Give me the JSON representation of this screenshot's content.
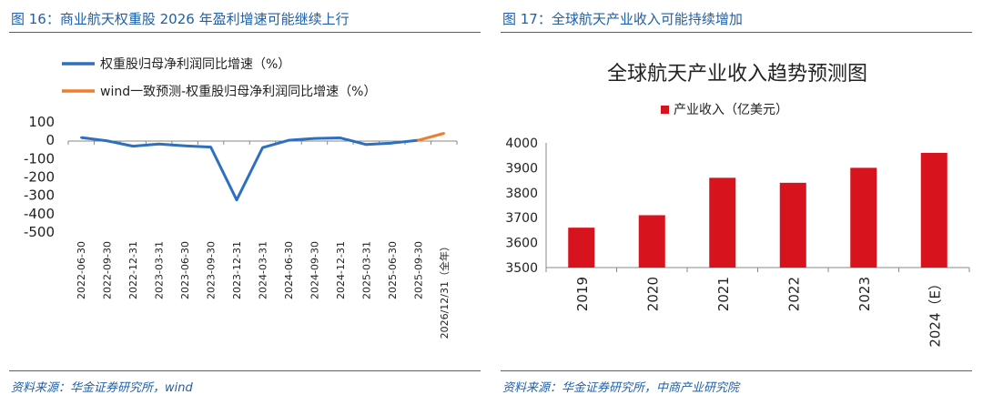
{
  "left": {
    "fig_label": "图 16：",
    "fig_title": "商业航天权重股 2026 年盈利增速可能继续上行",
    "source": "资料来源：华金证券研究所，wind"
  },
  "right": {
    "fig_label": "图 17：",
    "fig_title": "全球航天产业收入可能持续增加",
    "source": "资料来源：华金证券研究所，中商产业研究院"
  },
  "colors": {
    "accent": "#1f5fa8",
    "line_actual": "#2e6fbf",
    "line_forecast": "#ed7d31",
    "bar": "#d7131d"
  },
  "chart_data": [
    {
      "type": "line",
      "title": "",
      "categories": [
        "2022-06-30",
        "2022-09-30",
        "2022-12-31",
        "2023-03-31",
        "2023-06-30",
        "2023-09-30",
        "2023-12-31",
        "2024-03-31",
        "2024-06-30",
        "2024-09-30",
        "2024-12-31",
        "2025-03-31",
        "2025-06-30",
        "2025-09-30",
        "2026/12/31（全年）"
      ],
      "series": [
        {
          "name": "权重股归母净利润同比增速（%）",
          "color": "#2e6fbf",
          "values": [
            15,
            -3,
            -32,
            -20,
            -30,
            -37,
            -325,
            -40,
            0,
            10,
            13,
            -23,
            -15,
            0,
            null
          ]
        },
        {
          "name": "wind一致预测-权重股归母净利润同比增速（%）",
          "color": "#ed7d31",
          "values": [
            null,
            null,
            null,
            null,
            null,
            null,
            null,
            null,
            null,
            null,
            null,
            null,
            null,
            0,
            38
          ]
        }
      ],
      "yticks": [
        "100",
        "0",
        "-100",
        "-200",
        "-300",
        "-400",
        "-500"
      ],
      "ylim": [
        -500,
        100
      ],
      "xlabel": "",
      "ylabel": "",
      "legend": "top-left"
    },
    {
      "type": "bar",
      "title": "全球航天产业收入趋势预测图",
      "categories": [
        "2019",
        "2020",
        "2021",
        "2022",
        "2023",
        "2024（E）"
      ],
      "series": [
        {
          "name": "产业收入（亿美元）",
          "color": "#d7131d",
          "values": [
            3660,
            3710,
            3860,
            3840,
            3900,
            3960
          ]
        }
      ],
      "yticks": [
        "4000",
        "3900",
        "3800",
        "3700",
        "3600",
        "3500"
      ],
      "ylim": [
        3500,
        4000
      ],
      "xlabel": "",
      "ylabel": "",
      "legend": "top"
    }
  ]
}
